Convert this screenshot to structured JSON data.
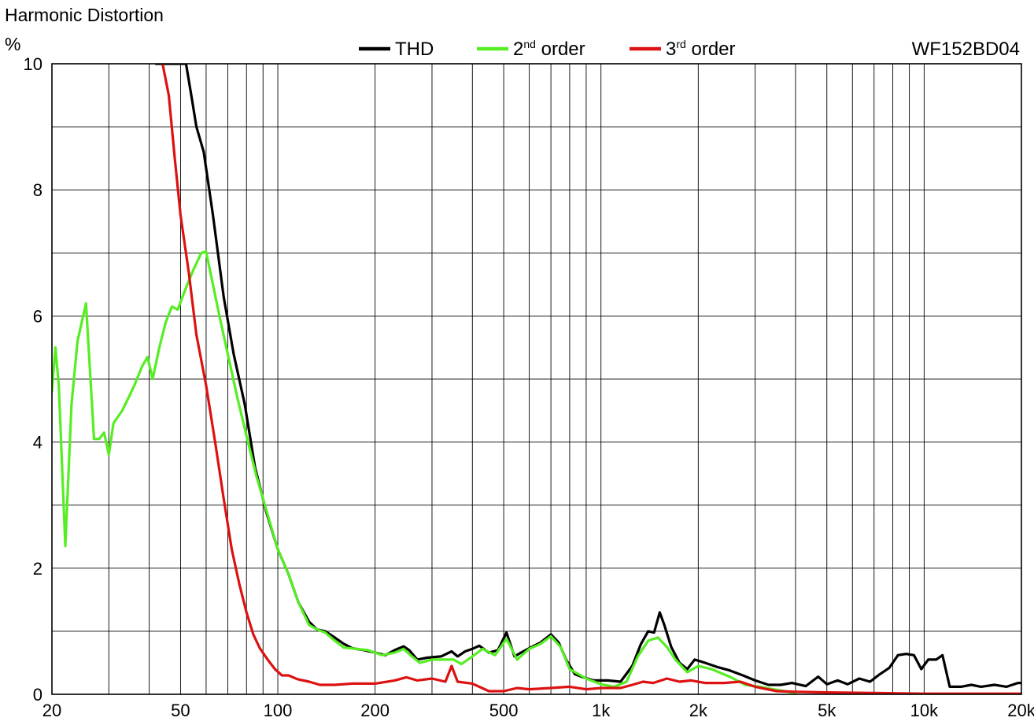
{
  "chart_data": {
    "type": "line",
    "title": "Harmonic Distortion",
    "ylabel": "%",
    "model": "WF152BD04",
    "x_scale": "log",
    "xlim": [
      20,
      20000
    ],
    "ylim": [
      0,
      10
    ],
    "grid": true,
    "legend_position": "top",
    "x_tick_labels": [
      {
        "value": 20,
        "label": "20"
      },
      {
        "value": 50,
        "label": "50"
      },
      {
        "value": 100,
        "label": "100"
      },
      {
        "value": 200,
        "label": "200"
      },
      {
        "value": 500,
        "label": "500"
      },
      {
        "value": 1000,
        "label": "1k"
      },
      {
        "value": 2000,
        "label": "2k"
      },
      {
        "value": 5000,
        "label": "5k"
      },
      {
        "value": 10000,
        "label": "10k"
      },
      {
        "value": 20000,
        "label": "20k"
      }
    ],
    "y_ticks": [
      0,
      2,
      4,
      6,
      8,
      10
    ],
    "x_grid_values": [
      20,
      30,
      40,
      50,
      60,
      70,
      80,
      90,
      100,
      200,
      300,
      400,
      500,
      600,
      700,
      800,
      900,
      1000,
      2000,
      3000,
      4000,
      5000,
      6000,
      7000,
      8000,
      9000,
      10000,
      20000
    ],
    "y_grid_values": [
      1,
      2,
      3,
      4,
      5,
      6,
      7,
      8,
      9,
      10
    ],
    "series": [
      {
        "name": "THD",
        "legend_base": "THD",
        "legend_sup": "",
        "legend_suffix": "",
        "color": "#000000",
        "points": [
          [
            42,
            10
          ],
          [
            52,
            10
          ],
          [
            54,
            9.5
          ],
          [
            56,
            9.0
          ],
          [
            59,
            8.6
          ],
          [
            63,
            7.6
          ],
          [
            68,
            6.3
          ],
          [
            73,
            5.4
          ],
          [
            79,
            4.6
          ],
          [
            85,
            3.6
          ],
          [
            92,
            2.9
          ],
          [
            100,
            2.3
          ],
          [
            108,
            1.9
          ],
          [
            116,
            1.45
          ],
          [
            125,
            1.15
          ],
          [
            132,
            1.03
          ],
          [
            140,
            1.0
          ],
          [
            150,
            0.9
          ],
          [
            160,
            0.8
          ],
          [
            170,
            0.73
          ],
          [
            185,
            0.7
          ],
          [
            200,
            0.66
          ],
          [
            215,
            0.62
          ],
          [
            230,
            0.7
          ],
          [
            245,
            0.76
          ],
          [
            255,
            0.7
          ],
          [
            270,
            0.55
          ],
          [
            290,
            0.58
          ],
          [
            320,
            0.6
          ],
          [
            345,
            0.68
          ],
          [
            360,
            0.6
          ],
          [
            380,
            0.68
          ],
          [
            400,
            0.72
          ],
          [
            420,
            0.77
          ],
          [
            450,
            0.66
          ],
          [
            480,
            0.7
          ],
          [
            510,
            0.98
          ],
          [
            540,
            0.6
          ],
          [
            570,
            0.67
          ],
          [
            610,
            0.75
          ],
          [
            650,
            0.82
          ],
          [
            700,
            0.95
          ],
          [
            740,
            0.82
          ],
          [
            780,
            0.55
          ],
          [
            830,
            0.32
          ],
          [
            880,
            0.27
          ],
          [
            950,
            0.22
          ],
          [
            1050,
            0.22
          ],
          [
            1150,
            0.2
          ],
          [
            1250,
            0.45
          ],
          [
            1330,
            0.8
          ],
          [
            1400,
            1.0
          ],
          [
            1460,
            0.98
          ],
          [
            1520,
            1.3
          ],
          [
            1570,
            1.1
          ],
          [
            1650,
            0.75
          ],
          [
            1750,
            0.5
          ],
          [
            1850,
            0.4
          ],
          [
            1950,
            0.55
          ],
          [
            2100,
            0.5
          ],
          [
            2300,
            0.43
          ],
          [
            2500,
            0.38
          ],
          [
            2750,
            0.3
          ],
          [
            3000,
            0.22
          ],
          [
            3300,
            0.15
          ],
          [
            3600,
            0.15
          ],
          [
            3900,
            0.18
          ],
          [
            4300,
            0.13
          ],
          [
            4700,
            0.28
          ],
          [
            5000,
            0.16
          ],
          [
            5400,
            0.22
          ],
          [
            5800,
            0.16
          ],
          [
            6300,
            0.25
          ],
          [
            6800,
            0.2
          ],
          [
            7300,
            0.32
          ],
          [
            7800,
            0.42
          ],
          [
            8300,
            0.62
          ],
          [
            8800,
            0.64
          ],
          [
            9300,
            0.62
          ],
          [
            9800,
            0.4
          ],
          [
            10300,
            0.55
          ],
          [
            10900,
            0.55
          ],
          [
            11400,
            0.62
          ],
          [
            12000,
            0.12
          ],
          [
            13000,
            0.12
          ],
          [
            14000,
            0.15
          ],
          [
            15000,
            0.12
          ],
          [
            16500,
            0.15
          ],
          [
            18000,
            0.12
          ],
          [
            19500,
            0.18
          ],
          [
            20000,
            0.18
          ]
        ]
      },
      {
        "name": "2nd order",
        "legend_base": "2",
        "legend_sup": "nd",
        "legend_suffix": " order",
        "color": "#55ee22",
        "points": [
          [
            20,
            4.8
          ],
          [
            20.5,
            5.5
          ],
          [
            21,
            4.9
          ],
          [
            22,
            2.35
          ],
          [
            23,
            4.6
          ],
          [
            24,
            5.6
          ],
          [
            25.5,
            6.2
          ],
          [
            27,
            4.05
          ],
          [
            28,
            4.05
          ],
          [
            29,
            4.15
          ],
          [
            30,
            3.8
          ],
          [
            31,
            4.3
          ],
          [
            33,
            4.5
          ],
          [
            34.5,
            4.7
          ],
          [
            36,
            4.9
          ],
          [
            38,
            5.2
          ],
          [
            39.5,
            5.35
          ],
          [
            41,
            5.0
          ],
          [
            43,
            5.5
          ],
          [
            45,
            5.9
          ],
          [
            47,
            6.15
          ],
          [
            49,
            6.1
          ],
          [
            52,
            6.45
          ],
          [
            55,
            6.75
          ],
          [
            58,
            7.0
          ],
          [
            60,
            7.02
          ],
          [
            63,
            6.5
          ],
          [
            66,
            6.0
          ],
          [
            70,
            5.4
          ],
          [
            75,
            4.7
          ],
          [
            80,
            4.1
          ],
          [
            86,
            3.45
          ],
          [
            93,
            2.85
          ],
          [
            100,
            2.3
          ],
          [
            108,
            1.9
          ],
          [
            116,
            1.45
          ],
          [
            125,
            1.1
          ],
          [
            132,
            1.03
          ],
          [
            140,
            0.98
          ],
          [
            150,
            0.85
          ],
          [
            160,
            0.74
          ],
          [
            175,
            0.72
          ],
          [
            190,
            0.7
          ],
          [
            210,
            0.62
          ],
          [
            230,
            0.66
          ],
          [
            245,
            0.72
          ],
          [
            260,
            0.6
          ],
          [
            275,
            0.5
          ],
          [
            300,
            0.55
          ],
          [
            330,
            0.55
          ],
          [
            350,
            0.55
          ],
          [
            370,
            0.48
          ],
          [
            400,
            0.6
          ],
          [
            430,
            0.72
          ],
          [
            470,
            0.62
          ],
          [
            510,
            0.88
          ],
          [
            550,
            0.55
          ],
          [
            600,
            0.72
          ],
          [
            650,
            0.8
          ],
          [
            700,
            0.92
          ],
          [
            750,
            0.75
          ],
          [
            800,
            0.4
          ],
          [
            900,
            0.25
          ],
          [
            1000,
            0.16
          ],
          [
            1100,
            0.12
          ],
          [
            1200,
            0.2
          ],
          [
            1300,
            0.6
          ],
          [
            1400,
            0.85
          ],
          [
            1500,
            0.9
          ],
          [
            1600,
            0.75
          ],
          [
            1700,
            0.55
          ],
          [
            1850,
            0.35
          ],
          [
            2000,
            0.45
          ],
          [
            2200,
            0.4
          ],
          [
            2500,
            0.28
          ],
          [
            2800,
            0.15
          ],
          [
            3100,
            0.12
          ],
          [
            3400,
            0.08
          ],
          [
            3700,
            0.05
          ],
          [
            4000,
            0.02
          ]
        ]
      },
      {
        "name": "3rd order",
        "legend_base": "3",
        "legend_sup": "rd",
        "legend_suffix": " order",
        "color": "#dd1111",
        "points": [
          [
            44,
            10
          ],
          [
            46,
            9.5
          ],
          [
            48,
            8.5
          ],
          [
            50,
            7.6
          ],
          [
            53,
            6.7
          ],
          [
            56,
            5.7
          ],
          [
            60,
            4.9
          ],
          [
            64,
            4.0
          ],
          [
            68,
            3.1
          ],
          [
            72,
            2.3
          ],
          [
            76,
            1.75
          ],
          [
            80,
            1.3
          ],
          [
            84,
            0.95
          ],
          [
            88,
            0.73
          ],
          [
            93,
            0.55
          ],
          [
            98,
            0.4
          ],
          [
            103,
            0.3
          ],
          [
            108,
            0.3
          ],
          [
            115,
            0.24
          ],
          [
            125,
            0.2
          ],
          [
            135,
            0.15
          ],
          [
            150,
            0.15
          ],
          [
            170,
            0.17
          ],
          [
            200,
            0.17
          ],
          [
            230,
            0.22
          ],
          [
            250,
            0.27
          ],
          [
            270,
            0.22
          ],
          [
            300,
            0.25
          ],
          [
            330,
            0.2
          ],
          [
            345,
            0.45
          ],
          [
            360,
            0.2
          ],
          [
            400,
            0.17
          ],
          [
            450,
            0.05
          ],
          [
            500,
            0.05
          ],
          [
            550,
            0.1
          ],
          [
            600,
            0.08
          ],
          [
            700,
            0.1
          ],
          [
            800,
            0.12
          ],
          [
            900,
            0.08
          ],
          [
            1000,
            0.1
          ],
          [
            1150,
            0.1
          ],
          [
            1250,
            0.15
          ],
          [
            1350,
            0.2
          ],
          [
            1450,
            0.18
          ],
          [
            1600,
            0.25
          ],
          [
            1750,
            0.2
          ],
          [
            1900,
            0.22
          ],
          [
            2100,
            0.18
          ],
          [
            2400,
            0.18
          ],
          [
            2700,
            0.2
          ],
          [
            3000,
            0.12
          ],
          [
            3500,
            0.05
          ],
          [
            4000,
            0.04
          ],
          [
            5000,
            0.03
          ],
          [
            7000,
            0.02
          ],
          [
            10000,
            0.01
          ],
          [
            20000,
            0.01
          ]
        ]
      }
    ]
  }
}
